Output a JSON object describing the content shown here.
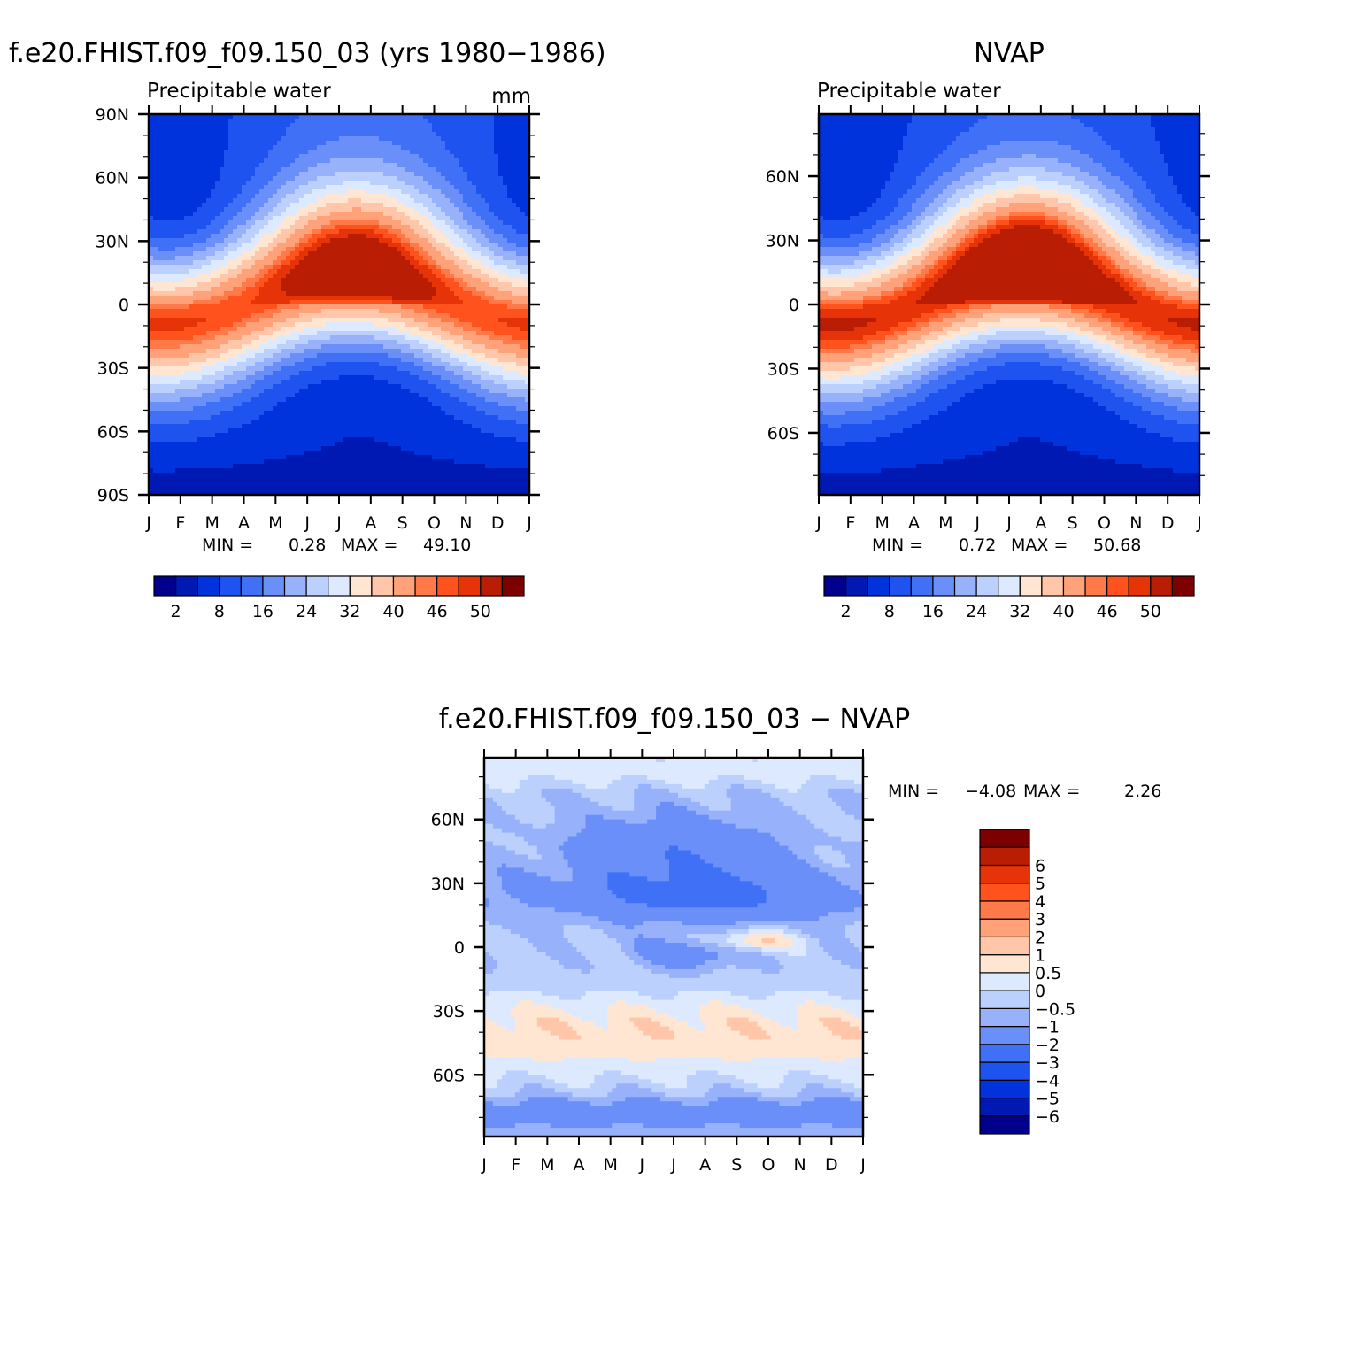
{
  "chart_data": [
    {
      "type": "heatmap",
      "title": "f.e20.FHIST.f09_f09.150_03 (yrs 1980−1986)",
      "subtitle": "Precipitable water",
      "units_label": "mm",
      "x_ticks": [
        "J",
        "F",
        "M",
        "A",
        "M",
        "J",
        "J",
        "A",
        "S",
        "O",
        "N",
        "D",
        "J"
      ],
      "y_ticks": [
        {
          "lat": 90,
          "label": "90N"
        },
        {
          "lat": 60,
          "label": "60N"
        },
        {
          "lat": 30,
          "label": "30N"
        },
        {
          "lat": 0,
          "label": "0"
        },
        {
          "lat": -30,
          "label": "30S"
        },
        {
          "lat": -60,
          "label": "60S"
        },
        {
          "lat": -90,
          "label": "90S"
        }
      ],
      "ylim": [
        -90,
        90
      ],
      "xlim": [
        0,
        12
      ],
      "stats": {
        "min_label": "MIN =",
        "min": "0.28",
        "max_label": "MAX =",
        "max": "49.10"
      },
      "colorbar": {
        "orientation": "horizontal",
        "levels": [
          2,
          4,
          8,
          12,
          16,
          20,
          24,
          28,
          32,
          36,
          40,
          44,
          46,
          48,
          50
        ],
        "tick_labels": [
          "2",
          "8",
          "16",
          "24",
          "32",
          "40",
          "46",
          "50"
        ],
        "colors": [
          "#00008c",
          "#0019b3",
          "#0033dc",
          "#1f53f0",
          "#3f70f5",
          "#6b8ff8",
          "#97b1fa",
          "#bcd0fd",
          "#dde9ff",
          "#ffe6d2",
          "#ffc6a9",
          "#ffa279",
          "#ff7a48",
          "#ff521c",
          "#e63308",
          "#b91e05",
          "#7d0000"
        ]
      },
      "model": {
        "eq_peak": 47,
        "itcz_amp": 9,
        "nh_seasonal": 16,
        "sh_seasonal": 5,
        "pole_n": 6,
        "pole_s": 1
      }
    },
    {
      "type": "heatmap",
      "title": "NVAP",
      "subtitle": "Precipitable water",
      "x_ticks": [
        "J",
        "F",
        "M",
        "A",
        "M",
        "J",
        "J",
        "A",
        "S",
        "O",
        "N",
        "D",
        "J"
      ],
      "y_ticks": [
        {
          "lat": 60,
          "label": "60N"
        },
        {
          "lat": 30,
          "label": "30N"
        },
        {
          "lat": 0,
          "label": "0"
        },
        {
          "lat": -30,
          "label": "30S"
        },
        {
          "lat": -60,
          "label": "60S"
        }
      ],
      "ylim": [
        -89,
        89
      ],
      "xlim": [
        0,
        12
      ],
      "stats": {
        "min_label": "MIN =",
        "min": "0.72",
        "max_label": "MAX =",
        "max": "50.68"
      },
      "colorbar": {
        "orientation": "horizontal",
        "levels": [
          2,
          4,
          8,
          12,
          16,
          20,
          24,
          28,
          32,
          36,
          40,
          44,
          46,
          48,
          50
        ],
        "tick_labels": [
          "2",
          "8",
          "16",
          "24",
          "32",
          "40",
          "46",
          "50"
        ],
        "colors": [
          "#00008c",
          "#0019b3",
          "#0033dc",
          "#1f53f0",
          "#3f70f5",
          "#6b8ff8",
          "#97b1fa",
          "#bcd0fd",
          "#dde9ff",
          "#ffe6d2",
          "#ffc6a9",
          "#ffa279",
          "#ff7a48",
          "#ff521c",
          "#e63308",
          "#b91e05",
          "#7d0000"
        ]
      },
      "model": {
        "eq_peak": 49,
        "itcz_amp": 9,
        "nh_seasonal": 18,
        "sh_seasonal": 5,
        "pole_n": 5,
        "pole_s": 1
      }
    },
    {
      "type": "heatmap",
      "title": "f.e20.FHIST.f09_f09.150_03 − NVAP",
      "x_ticks": [
        "J",
        "F",
        "M",
        "A",
        "M",
        "J",
        "J",
        "A",
        "S",
        "O",
        "N",
        "D",
        "J"
      ],
      "y_ticks": [
        {
          "lat": 60,
          "label": "60N"
        },
        {
          "lat": 30,
          "label": "30N"
        },
        {
          "lat": 0,
          "label": "0"
        },
        {
          "lat": -30,
          "label": "30S"
        },
        {
          "lat": -60,
          "label": "60S"
        }
      ],
      "ylim": [
        -89,
        89
      ],
      "xlim": [
        0,
        12
      ],
      "stats": {
        "min_label": "MIN =",
        "min": "−4.08",
        "max_label": "MAX =",
        "max": "2.26"
      },
      "colorbar": {
        "orientation": "vertical",
        "levels": [
          -6,
          -5,
          -4,
          -3,
          -2,
          -1,
          -0.5,
          0,
          0.5,
          1,
          2,
          3,
          4,
          5,
          6
        ],
        "tick_labels": [
          "−6",
          "−5",
          "−4",
          "−3",
          "−2",
          "−1",
          "−0.5",
          "0",
          "0.5",
          "1",
          "2",
          "3",
          "4",
          "5",
          "6"
        ],
        "colors": [
          "#00008c",
          "#0019b3",
          "#0033dc",
          "#1f53f0",
          "#3f70f5",
          "#6b8ff8",
          "#97b1fa",
          "#bcd0fd",
          "#dde9ff",
          "#ffe6d2",
          "#ffc6a9",
          "#ffa279",
          "#ff7a48",
          "#ff521c",
          "#e63308",
          "#b91e05",
          "#7d0000"
        ]
      }
    }
  ]
}
